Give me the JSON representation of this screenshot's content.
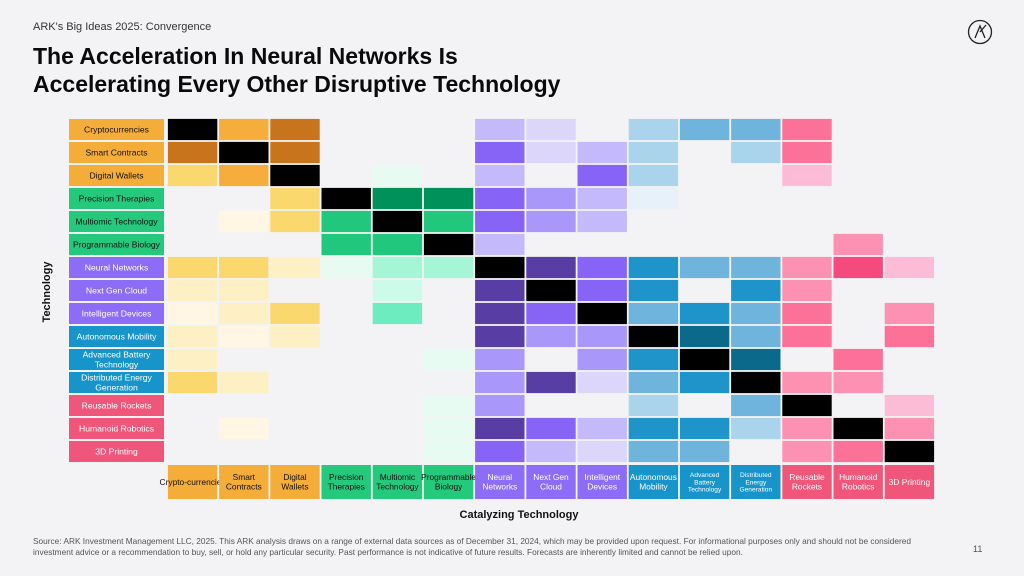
{
  "header": {
    "subtitle": "ARK's Big Ideas 2025: Convergence",
    "title_line1": "The Acceleration In Neural Networks Is",
    "title_line2": "Accelerating Every Other Disruptive Technology",
    "logo": "ark-logo-icon"
  },
  "footer": {
    "source": "Source: ARK Investment Management LLC, 2025. This ARK analysis draws on a range of external data sources as of December 31, 2024, which may be provided upon request. For informational purposes only and should not be considered investment advice or a recommendation to buy, sell, or hold any particular security. Past performance is not indicative of future results. Forecasts are inherently limited and cannot be relied upon.",
    "page": "11"
  },
  "colors": {
    "background": "#f3f3f5",
    "groups": [
      {
        "label": "#f5ad3a",
        "shades": [
          "#ffffff",
          "#fff7e3",
          "#fdf0c5",
          "#fde59c",
          "#fbd86e",
          "#f6ad3b",
          "#c7741c"
        ]
      },
      {
        "label": "#25c97c",
        "shades": [
          "#ffffff",
          "#e8fbf3",
          "#cdfbea",
          "#a4f6d7",
          "#6decc0",
          "#20c77c",
          "#00905a"
        ]
      },
      {
        "label": "#8d6cf7",
        "shades": [
          "#ffffff",
          "#eeeafd",
          "#dcd6fb",
          "#c4b9fa",
          "#a997f9",
          "#8764f6",
          "#583da4"
        ]
      },
      {
        "label": "#1794c9",
        "shades": [
          "#ffffff",
          "#e6f1f9",
          "#cde3f1",
          "#a9d4eb",
          "#6fb4dc",
          "#1e94cb",
          "#0b6a8c"
        ]
      },
      {
        "label": "#f0567a",
        "shades": [
          "#ffffff",
          "#fde6ee",
          "#fcd2e1",
          "#fdbcd5",
          "#fc91b3",
          "#fc7198",
          "#f54a7e"
        ]
      }
    ],
    "self": "#000000"
  },
  "chart_data": {
    "type": "heatmap",
    "description": "Strength of convergence between technologies; 0 = none, 6 = strongest, -1 = self",
    "ylabel": "Technology",
    "xlabel": "Catalyzing Technology",
    "rows": [
      {
        "label": "Cryptocurrencies",
        "group": 0
      },
      {
        "label": "Smart Contracts",
        "group": 0
      },
      {
        "label": "Digital Wallets",
        "group": 0
      },
      {
        "label": "Precision Therapies",
        "group": 1
      },
      {
        "label": "Multiomic Technology",
        "group": 1
      },
      {
        "label": "Programmable Biology",
        "group": 1
      },
      {
        "label": "Neural Networks",
        "group": 2
      },
      {
        "label": "Next Gen Cloud",
        "group": 2
      },
      {
        "label": "Intelligent Devices",
        "group": 2
      },
      {
        "label": "Autonomous Mobility",
        "group": 3
      },
      {
        "label": "Advanced Battery Technology",
        "group": 3
      },
      {
        "label": "Distributed Energy Generation",
        "group": 3
      },
      {
        "label": "Reusable Rockets",
        "group": 4
      },
      {
        "label": "Humanoid Robotics",
        "group": 4
      },
      {
        "label": "3D Printing",
        "group": 4
      }
    ],
    "columns": [
      {
        "label": "Crypto-currencies",
        "group": 0
      },
      {
        "label": "Smart Contracts",
        "group": 0
      },
      {
        "label": "Digital Wallets",
        "group": 0
      },
      {
        "label": "Precision Therapies",
        "group": 1
      },
      {
        "label": "Multiomic Technology",
        "group": 1
      },
      {
        "label": "Programmable Biology",
        "group": 1
      },
      {
        "label": "Neural Networks",
        "group": 2
      },
      {
        "label": "Next Gen Cloud",
        "group": 2
      },
      {
        "label": "Intelligent Devices",
        "group": 2
      },
      {
        "label": "Autonomous Mobility",
        "group": 3
      },
      {
        "label": "Advanced Battery Technology",
        "group": 3
      },
      {
        "label": "Distributed Energy Generation",
        "group": 3
      },
      {
        "label": "Reusable Rockets",
        "group": 4
      },
      {
        "label": "Humanoid Robotics",
        "group": 4
      },
      {
        "label": "3D Printing",
        "group": 4
      }
    ],
    "values": [
      [
        -1,
        5,
        6,
        0,
        0,
        0,
        3,
        2,
        0,
        3,
        4,
        4,
        5,
        0,
        0
      ],
      [
        6,
        -1,
        6,
        0,
        0,
        0,
        5,
        2,
        3,
        3,
        0,
        3,
        5,
        0,
        0
      ],
      [
        4,
        5,
        -1,
        0,
        1,
        0,
        3,
        0,
        5,
        3,
        0,
        0,
        3,
        0,
        0
      ],
      [
        0,
        0,
        4,
        -1,
        6,
        6,
        5,
        4,
        3,
        1,
        0,
        0,
        0,
        0,
        0
      ],
      [
        0,
        1,
        4,
        5,
        -1,
        5,
        5,
        4,
        3,
        0,
        0,
        0,
        0,
        0,
        0
      ],
      [
        0,
        0,
        0,
        5,
        5,
        -1,
        3,
        0,
        0,
        0,
        0,
        0,
        0,
        4,
        0
      ],
      [
        4,
        4,
        2,
        1,
        3,
        3,
        -1,
        6,
        5,
        5,
        4,
        4,
        4,
        6,
        3
      ],
      [
        2,
        2,
        0,
        0,
        2,
        0,
        6,
        -1,
        5,
        5,
        0,
        5,
        4,
        0,
        0
      ],
      [
        1,
        2,
        4,
        0,
        4,
        0,
        6,
        5,
        -1,
        4,
        5,
        4,
        5,
        0,
        4
      ],
      [
        2,
        1,
        2,
        0,
        0,
        0,
        6,
        4,
        4,
        -1,
        6,
        4,
        5,
        0,
        5
      ],
      [
        2,
        0,
        0,
        0,
        0,
        1,
        4,
        0,
        4,
        5,
        -1,
        6,
        0,
        5,
        0
      ],
      [
        4,
        2,
        0,
        0,
        0,
        0,
        4,
        6,
        2,
        4,
        5,
        -1,
        4,
        4,
        0
      ],
      [
        0,
        0,
        0,
        0,
        0,
        1,
        4,
        0,
        0,
        3,
        0,
        4,
        -1,
        0,
        3
      ],
      [
        0,
        1,
        0,
        0,
        0,
        1,
        6,
        5,
        3,
        5,
        5,
        3,
        4,
        -1,
        4
      ],
      [
        0,
        0,
        0,
        0,
        0,
        1,
        5,
        3,
        2,
        4,
        4,
        0,
        4,
        5,
        -1
      ]
    ]
  }
}
